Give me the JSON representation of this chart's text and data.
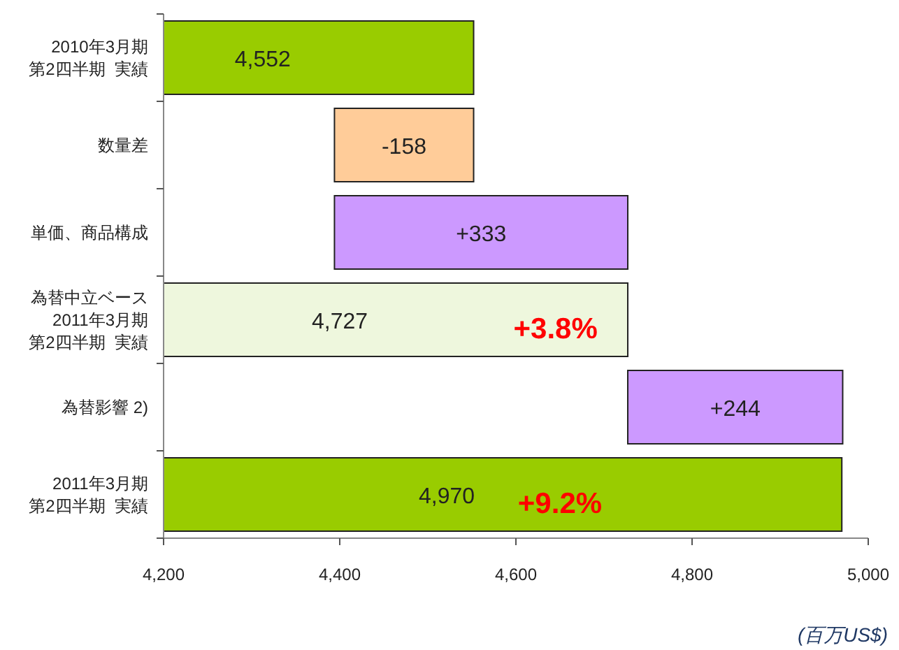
{
  "chart_data": {
    "type": "bar",
    "orientation": "horizontal",
    "categories": [
      "2010年3月期第2四半期  実績",
      "数量差",
      "単価、商品構成",
      "為替中立ベース2011年3月期第2四半期  実績",
      "為替影響 2)",
      "2011年3月期第2四半期  実績"
    ],
    "values": [
      4552,
      -158,
      333,
      4727,
      244,
      4970
    ],
    "base": [
      null,
      4552,
      4394,
      null,
      4727,
      null
    ],
    "colors": [
      "#99cc00",
      "#ffcc99",
      "#cc99ff",
      "#eef7dd",
      "#cc99ff",
      "#99cc00"
    ],
    "value_labels": [
      "4,552",
      "-158",
      "+333",
      "4,727",
      "+244",
      "4,970"
    ],
    "xlim": [
      4200,
      5000
    ],
    "xticks": [
      {
        "value": 4200,
        "label": "4,200"
      },
      {
        "value": 4400,
        "label": "4,400"
      },
      {
        "value": 4600,
        "label": "4,600"
      },
      {
        "value": 4800,
        "label": "4,800"
      },
      {
        "value": 5000,
        "label": "5,000"
      }
    ],
    "grid": false,
    "legend": false,
    "annotations": [
      {
        "text": "+3.8%",
        "x": 4645,
        "y": "為替中立ベース2011年3月期第2四半期  実績"
      },
      {
        "text": "+9.2%",
        "x": 4650,
        "y": "2011年3月期第2四半期  実績"
      },
      "(百万US$)"
    ]
  }
}
